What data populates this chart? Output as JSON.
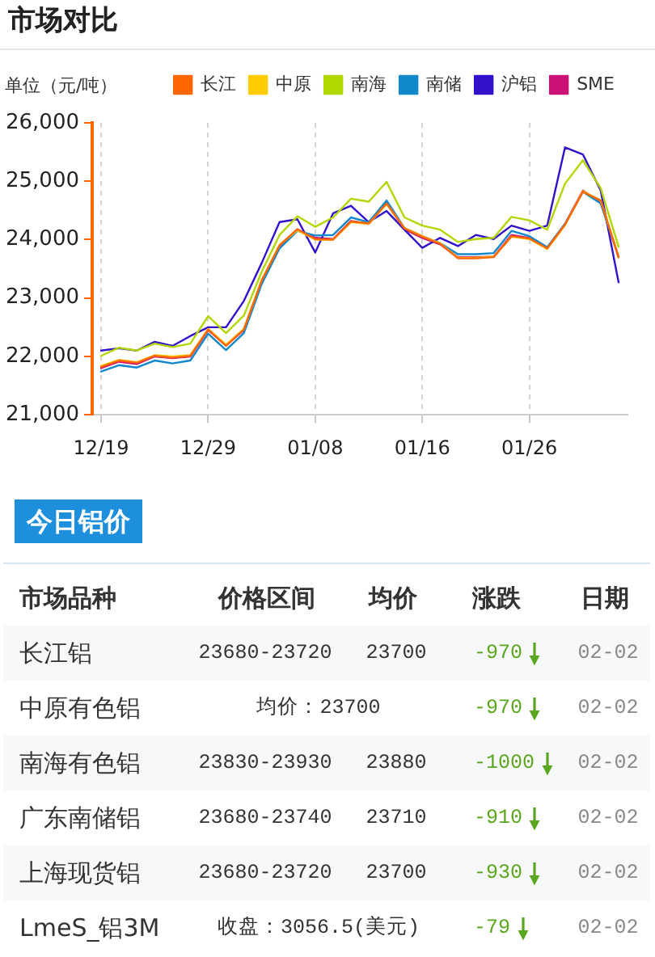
{
  "chart_data": [
    {
      "type": "line",
      "title": "市场对比",
      "ylabel": "单位（元/吨）",
      "categories": [
        "12/19",
        null,
        null,
        null,
        null,
        null,
        "12/29",
        null,
        null,
        null,
        null,
        null,
        "01/08",
        null,
        null,
        null,
        null,
        null,
        "01/16",
        null,
        null,
        null,
        null,
        null,
        "01/26",
        null,
        null,
        null,
        null,
        null
      ],
      "series": [
        {
          "name": "长江",
          "color": "#ff6600",
          "values": [
            21820,
            21930,
            21890,
            22010,
            21980,
            22010,
            22460,
            22180,
            22460,
            23300,
            23900,
            24180,
            24010,
            24000,
            24310,
            24280,
            24620,
            24190,
            24050,
            23930,
            23680,
            23680,
            23700,
            24060,
            24020,
            23850,
            24260,
            24820,
            24670,
            23700
          ]
        },
        {
          "name": "中原",
          "color": "#ffcc00",
          "values": [
            21840,
            21940,
            21900,
            22020,
            22000,
            22020,
            22470,
            22200,
            22470,
            23310,
            23910,
            24160,
            24000,
            24000,
            24300,
            24270,
            24610,
            24200,
            24060,
            23940,
            23690,
            23690,
            23710,
            24050,
            24010,
            23840,
            24250,
            24830,
            24670,
            23700
          ]
        },
        {
          "name": "南海",
          "color": "#b0d800",
          "values": [
            22010,
            22150,
            22100,
            22220,
            22160,
            22220,
            22690,
            22400,
            22700,
            23450,
            24080,
            24400,
            24220,
            24380,
            24700,
            24650,
            24990,
            24380,
            24240,
            24170,
            23960,
            24010,
            24030,
            24390,
            24330,
            24170,
            24960,
            25360,
            24880,
            23880
          ]
        },
        {
          "name": "南储",
          "color": "#1188cc",
          "values": [
            21740,
            21850,
            21810,
            21930,
            21880,
            21930,
            22390,
            22110,
            22400,
            23240,
            23850,
            24150,
            24070,
            24080,
            24380,
            24300,
            24670,
            24200,
            24060,
            23940,
            23750,
            23750,
            23770,
            24150,
            24060,
            23870,
            24270,
            24820,
            24620,
            23710
          ]
        },
        {
          "name": "沪铝",
          "color": "#3311cc",
          "values": [
            22100,
            22140,
            22100,
            22250,
            22180,
            22350,
            22500,
            22500,
            22950,
            23600,
            24300,
            24350,
            23780,
            24450,
            24580,
            24300,
            24490,
            24170,
            23860,
            24030,
            23890,
            24080,
            24010,
            24240,
            24150,
            24240,
            25580,
            25460,
            24840,
            23270
          ]
        },
        {
          "name": "SME",
          "color": "#cc1177",
          "values": [
            21800,
            21910,
            21870,
            22000,
            21970,
            22000,
            22450,
            22190,
            22450,
            23290,
            23890,
            24170,
            24030,
            24010,
            24320,
            24270,
            24630,
            24180,
            24030,
            23920,
            23700,
            23700,
            23710,
            24080,
            24030,
            23860,
            24270,
            24840,
            24630,
            23700
          ]
        }
      ],
      "ylim": [
        21000,
        26000
      ],
      "yticks": [
        {
          "value": 21000,
          "label": "21,000"
        },
        {
          "value": 22000,
          "label": "22,000"
        },
        {
          "value": 23000,
          "label": "23,000"
        },
        {
          "value": 24000,
          "label": "24,000"
        },
        {
          "value": 25000,
          "label": "25,000"
        },
        {
          "value": 26000,
          "label": "26,000"
        }
      ],
      "grid": "x",
      "legend": "top right",
      "marker": "none"
    },
    {
      "type": "other",
      "title": "今日铝价",
      "categories": [
        "市场品种",
        "价格区间",
        "均价",
        "涨跌",
        "日期"
      ],
      "y_categories": [
        "长江铝",
        "中原有色铝",
        "南海有色铝",
        "广东南储铝",
        "上海现货铝",
        "LmeS_铝3M"
      ],
      "cell_labels": [
        [
          "23680-23720",
          "23700",
          "-970",
          "02-02"
        ],
        [
          "均价：23700",
          null,
          "-970",
          "02-02"
        ],
        [
          "23830-23930",
          "23880",
          "-1000",
          "02-02"
        ],
        [
          "23680-23740",
          "23710",
          "-910",
          "02-02"
        ],
        [
          "23680-23720",
          "23700",
          "-930",
          "02-02"
        ],
        [
          "收盘：3056.5(美元)",
          null,
          "-79",
          "02-02"
        ]
      ]
    }
  ]
}
